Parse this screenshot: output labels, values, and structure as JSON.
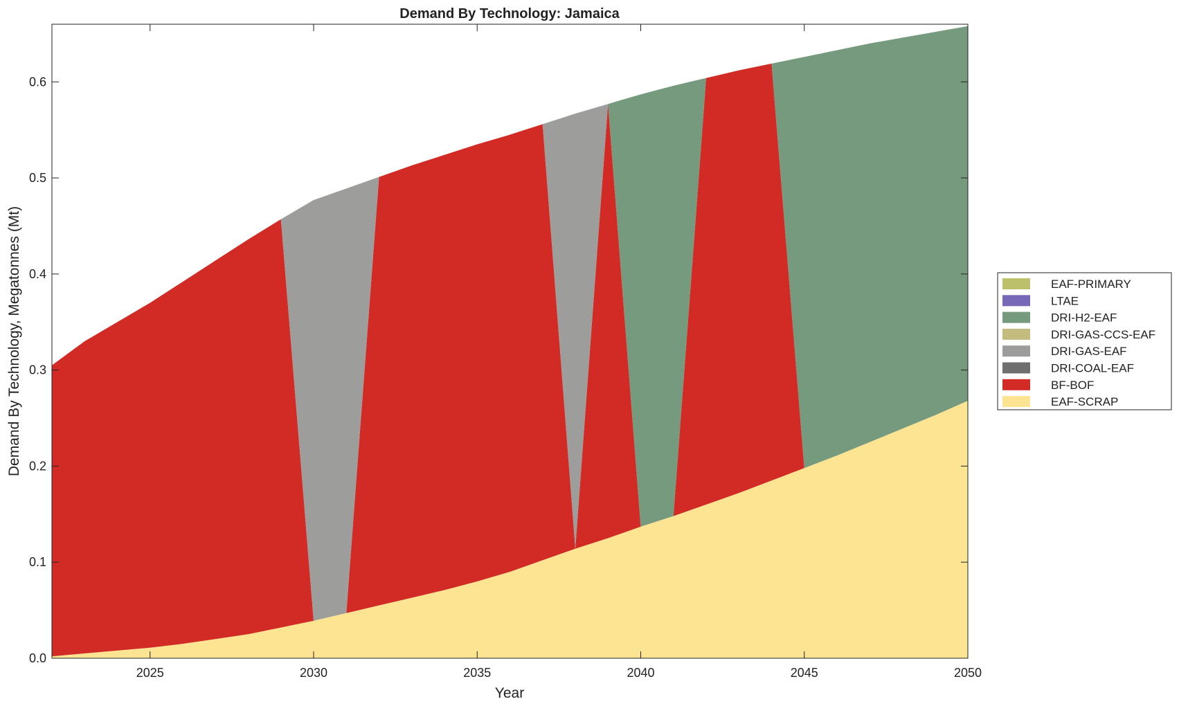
{
  "chart_data": {
    "type": "stacked_area",
    "title": "Demand By Technology: Jamaica",
    "x_label": "Year",
    "y_label": "Demand By Technology, Megatonnes (Mt)",
    "x": [
      2022,
      2023,
      2024,
      2025,
      2026,
      2027,
      2028,
      2029,
      2030,
      2031,
      2032,
      2033,
      2034,
      2035,
      2036,
      2037,
      2038,
      2039,
      2040,
      2041,
      2042,
      2043,
      2044,
      2045,
      2046,
      2047,
      2048,
      2049,
      2050
    ],
    "xlim": [
      2022,
      2050
    ],
    "xticks": [
      2025,
      2030,
      2035,
      2040,
      2045,
      2050
    ],
    "ylim": [
      0,
      0.66
    ],
    "yticks": [
      {
        "value": 0,
        "label": "0.0"
      },
      0.1,
      0.2,
      0.3,
      0.4,
      0.5,
      0.6
    ],
    "legend": "right",
    "series": [
      {
        "name": "EAF-PRIMARY",
        "color": "#bcc06a",
        "values": [
          0,
          0,
          0,
          0,
          0,
          0,
          0,
          0,
          0,
          0,
          0,
          0,
          0,
          0,
          0,
          0,
          0,
          0,
          0,
          0,
          0,
          0,
          0,
          0,
          0,
          0,
          0,
          0,
          0
        ]
      },
      {
        "name": "LTAE",
        "color": "#7768b8",
        "values": [
          0,
          0,
          0,
          0,
          0,
          0,
          0,
          0,
          0,
          0,
          0,
          0,
          0,
          0,
          0,
          0,
          0,
          0,
          0,
          0,
          0,
          0,
          0,
          0,
          0,
          0,
          0,
          0,
          0
        ]
      },
      {
        "name": "DRI-H2-EAF",
        "color": "#759a7e",
        "values": [
          0,
          0,
          0,
          0,
          0,
          0,
          0,
          0,
          0,
          0,
          0,
          0,
          0,
          0,
          0,
          0,
          0,
          0,
          0.45,
          0.448,
          0,
          0,
          0,
          0.428,
          0.422,
          0.415,
          0.407,
          0.399,
          0.39
        ]
      },
      {
        "name": "DRI-GAS-CCS-EAF",
        "color": "#c4bb7f",
        "values": [
          0,
          0,
          0,
          0,
          0,
          0,
          0,
          0,
          0,
          0,
          0,
          0,
          0,
          0,
          0,
          0,
          0,
          0,
          0,
          0,
          0,
          0,
          0,
          0,
          0,
          0,
          0,
          0,
          0
        ]
      },
      {
        "name": "DRI-GAS-EAF",
        "color": "#9d9d9b",
        "values": [
          0,
          0,
          0,
          0,
          0,
          0,
          0,
          0,
          0.438,
          0.442,
          0,
          0,
          0,
          0,
          0,
          0,
          0.453,
          0,
          0,
          0,
          0,
          0,
          0,
          0,
          0,
          0,
          0,
          0,
          0
        ]
      },
      {
        "name": "DRI-COAL-EAF",
        "color": "#6f6f6f",
        "values": [
          0,
          0,
          0,
          0,
          0,
          0,
          0,
          0,
          0,
          0,
          0,
          0,
          0,
          0,
          0,
          0,
          0,
          0,
          0,
          0,
          0,
          0,
          0,
          0,
          0,
          0,
          0,
          0,
          0
        ]
      },
      {
        "name": "BF-BOF",
        "color": "#d22b25",
        "values": [
          0.303,
          0.325,
          0.342,
          0.359,
          0.377,
          0.394,
          0.411,
          0.425,
          0,
          0,
          0.446,
          0.45,
          0.453,
          0.455,
          0.455,
          0.454,
          0,
          0.452,
          0,
          0,
          0.444,
          0.44,
          0.434,
          0,
          0,
          0,
          0,
          0,
          0
        ]
      },
      {
        "name": "EAF-SCRAP",
        "color": "#fde493",
        "values": [
          0.002,
          0.005,
          0.008,
          0.011,
          0.015,
          0.02,
          0.025,
          0.032,
          0.039,
          0.047,
          0.055,
          0.063,
          0.071,
          0.08,
          0.09,
          0.102,
          0.114,
          0.125,
          0.137,
          0.148,
          0.16,
          0.172,
          0.185,
          0.198,
          0.211,
          0.225,
          0.239,
          0.253,
          0.268
        ]
      }
    ]
  }
}
